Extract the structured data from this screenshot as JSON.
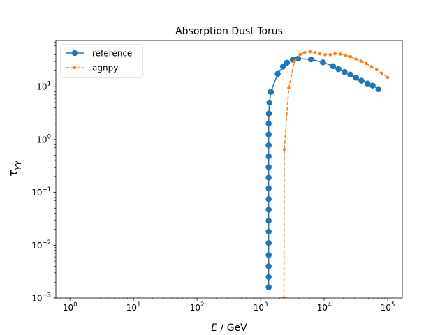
{
  "chart_data": {
    "type": "line",
    "title": "Absorption Dust Torus",
    "xlabel_var": "E",
    "xlabel_unit": "GeV",
    "ylabel_var": "τ",
    "ylabel_sub": "γγ",
    "x_scale": "log",
    "y_scale": "log",
    "xlim": [
      0.6,
      170000
    ],
    "ylim": [
      0.001,
      75
    ],
    "x_ticks": [
      {
        "value": 1,
        "base": "10",
        "exp": "0"
      },
      {
        "value": 10,
        "base": "10",
        "exp": "1"
      },
      {
        "value": 100,
        "base": "10",
        "exp": "2"
      },
      {
        "value": 1000,
        "base": "10",
        "exp": "3"
      },
      {
        "value": 10000,
        "base": "10",
        "exp": "4"
      },
      {
        "value": 100000,
        "base": "10",
        "exp": "5"
      }
    ],
    "y_ticks": [
      {
        "value": 0.001,
        "base": "10",
        "exp": "−3"
      },
      {
        "value": 0.01,
        "base": "10",
        "exp": "−2"
      },
      {
        "value": 0.1,
        "base": "10",
        "exp": "−1"
      },
      {
        "value": 1,
        "base": "10",
        "exp": "0"
      },
      {
        "value": 10,
        "base": "10",
        "exp": "1"
      }
    ],
    "grid": false,
    "legend_position": "top-left",
    "series": [
      {
        "name": "reference",
        "color": "#1f77b4",
        "line_style": "solid",
        "marker": "circle-large",
        "points": [
          [
            1340,
            0.0016
          ],
          [
            1340,
            0.0025
          ],
          [
            1340,
            0.004
          ],
          [
            1340,
            0.0065
          ],
          [
            1340,
            0.011
          ],
          [
            1340,
            0.018
          ],
          [
            1340,
            0.029
          ],
          [
            1340,
            0.047
          ],
          [
            1340,
            0.075
          ],
          [
            1340,
            0.12
          ],
          [
            1340,
            0.19
          ],
          [
            1340,
            0.3
          ],
          [
            1340,
            0.48
          ],
          [
            1340,
            0.78
          ],
          [
            1340,
            1.25
          ],
          [
            1340,
            2.0
          ],
          [
            1350,
            3.1
          ],
          [
            1380,
            5.0
          ],
          [
            1450,
            8.0
          ],
          [
            1860,
            17.5
          ],
          [
            2250,
            24.0
          ],
          [
            2600,
            28.5
          ],
          [
            3200,
            32.5
          ],
          [
            3900,
            34.0
          ],
          [
            6200,
            33.0
          ],
          [
            9600,
            29.0
          ],
          [
            13800,
            24.5
          ],
          [
            16800,
            21.5
          ],
          [
            21000,
            19.0
          ],
          [
            25800,
            17.0
          ],
          [
            31800,
            14.8
          ],
          [
            38700,
            13.0
          ],
          [
            48000,
            11.5
          ],
          [
            58000,
            10.5
          ],
          [
            71500,
            9.0
          ]
        ]
      },
      {
        "name": "agnpy",
        "color": "#ff7f0e",
        "line_style": "dashed",
        "marker": "circle-small",
        "points": [
          [
            2330,
            0.001
          ],
          [
            2360,
            0.65
          ],
          [
            2780,
            9.5
          ],
          [
            3400,
            30.0
          ],
          [
            4200,
            41.0
          ],
          [
            4950,
            44.5
          ],
          [
            6000,
            46.0
          ],
          [
            7200,
            44.0
          ],
          [
            8600,
            42.0
          ],
          [
            10400,
            40.5
          ],
          [
            12500,
            40.5
          ],
          [
            14800,
            42.0
          ],
          [
            18000,
            41.5
          ],
          [
            21500,
            39.5
          ],
          [
            26000,
            37.0
          ],
          [
            31500,
            33.5
          ],
          [
            38000,
            30.5
          ],
          [
            46000,
            27.5
          ],
          [
            55500,
            24.0
          ],
          [
            67000,
            21.0
          ],
          [
            81000,
            18.0
          ],
          [
            100000,
            15.0
          ]
        ]
      }
    ]
  }
}
